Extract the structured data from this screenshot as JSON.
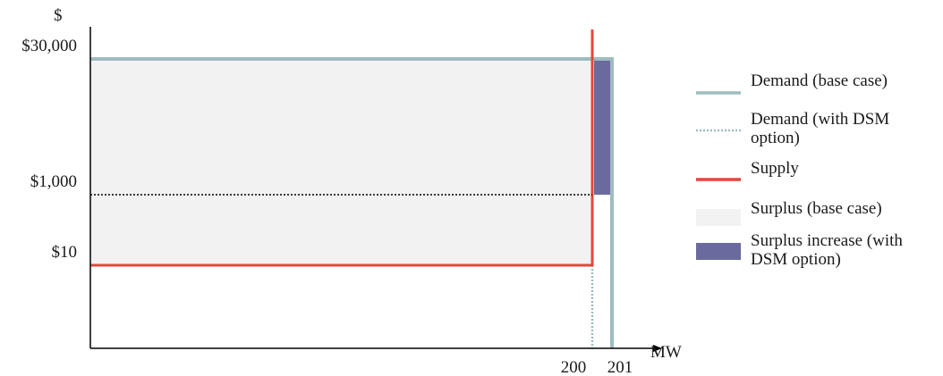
{
  "chart_data": {
    "type": "line",
    "title": "",
    "ylabel": "$",
    "xlabel": "MW",
    "y_ticks": [
      {
        "value": 30000,
        "label": "$30,000"
      },
      {
        "value": 1000,
        "label": "$1,000"
      },
      {
        "value": 10,
        "label": "$10"
      }
    ],
    "x_ticks": [
      {
        "value": 200,
        "label": "200"
      },
      {
        "value": 201,
        "label": "201"
      }
    ],
    "price_levels": {
      "high": 30000,
      "dsm_price": 1000,
      "low": 10
    },
    "quantities": {
      "base_case_demand": 201,
      "dsm_demand": 200,
      "supply_capacity": 200
    },
    "series": [
      {
        "name": "Demand (base case)",
        "style": "solid",
        "color": "#9fbcc0",
        "points": [
          [
            0,
            30000
          ],
          [
            201,
            30000
          ],
          [
            201,
            0
          ]
        ]
      },
      {
        "name": "Demand (with DSM option)",
        "style": "dotted",
        "color": "#9fbcc0",
        "points": [
          [
            0,
            30000
          ],
          [
            200,
            30000
          ],
          [
            200,
            0
          ]
        ]
      },
      {
        "name": "Supply",
        "style": "solid",
        "color": "#e0483f",
        "points": [
          [
            0,
            10
          ],
          [
            200,
            10
          ],
          [
            200,
            40000
          ]
        ]
      }
    ],
    "dsm_price_line": {
      "value": 1000,
      "style": "dotted",
      "color": "#000000"
    },
    "areas": [
      {
        "name": "Surplus (base case)",
        "color": "#f2f2f2"
      },
      {
        "name": "Surplus increase (with DSM option)",
        "color": "#6b6a9f"
      }
    ],
    "legend": {
      "position": "right",
      "items": [
        {
          "lines": [
            "Demand (base case)"
          ],
          "kind": "line-solid",
          "color": "#9fbcc0"
        },
        {
          "lines": [
            "Demand (with DSM",
            "option)"
          ],
          "kind": "line-dotted",
          "color": "#9fbcc0"
        },
        {
          "lines": [
            "Supply"
          ],
          "kind": "line-solid",
          "color": "#e0483f"
        },
        {
          "lines": [
            "Surplus (base case)"
          ],
          "kind": "patch",
          "color": "#f2f2f2"
        },
        {
          "lines": [
            "Surplus increase (with",
            "DSM option)"
          ],
          "kind": "patch",
          "color": "#6b6a9f"
        }
      ]
    }
  }
}
